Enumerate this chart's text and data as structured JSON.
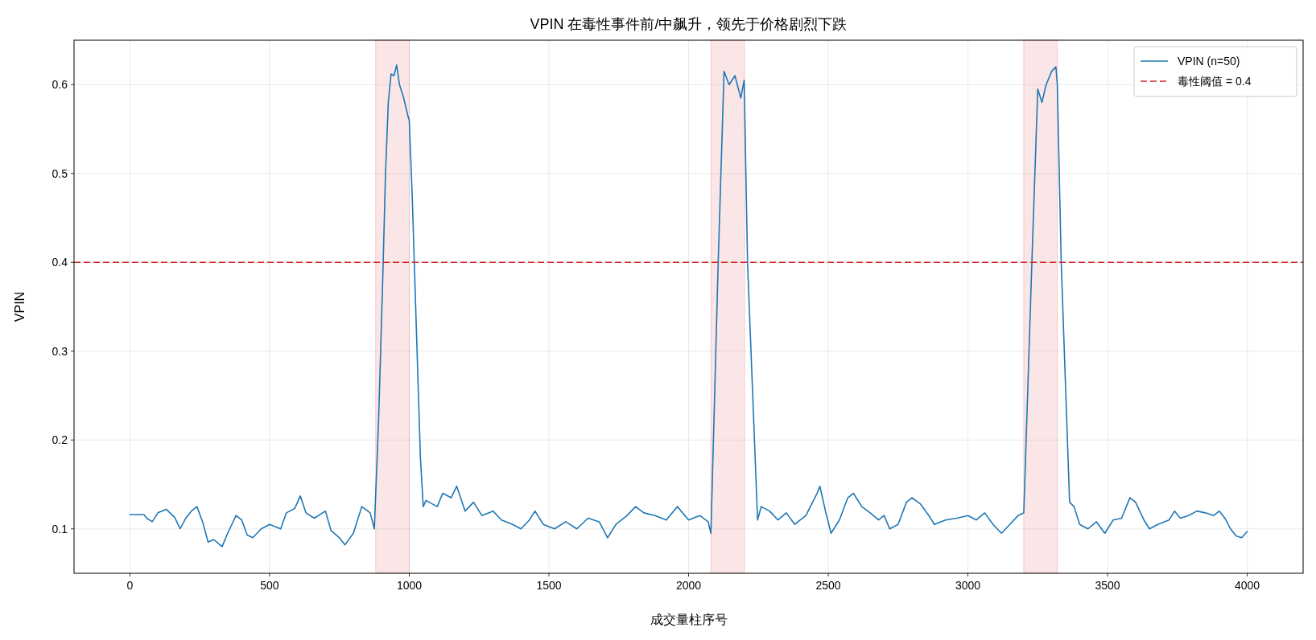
{
  "chart_data": {
    "type": "line",
    "title": "VPIN 在毒性事件前/中飙升，领先于价格剧烈下跌",
    "xlabel": "成交量柱序号",
    "ylabel": "VPIN",
    "x": [
      0,
      50,
      60,
      80,
      100,
      130,
      160,
      180,
      200,
      220,
      240,
      260,
      280,
      300,
      330,
      350,
      380,
      400,
      420,
      440,
      470,
      500,
      540,
      560,
      590,
      610,
      630,
      660,
      700,
      720,
      750,
      770,
      800,
      830,
      860,
      875,
      880,
      890,
      905,
      915,
      925,
      935,
      945,
      955,
      965,
      980,
      995,
      1000,
      1010,
      1025,
      1040,
      1050,
      1060,
      1100,
      1120,
      1150,
      1170,
      1200,
      1230,
      1260,
      1300,
      1330,
      1370,
      1400,
      1430,
      1450,
      1480,
      1520,
      1560,
      1600,
      1640,
      1680,
      1710,
      1740,
      1780,
      1810,
      1840,
      1880,
      1920,
      1960,
      2000,
      2040,
      2070,
      2080,
      2106,
      2127,
      2145,
      2166,
      2187,
      2199,
      2211,
      2247,
      2260,
      2290,
      2320,
      2350,
      2380,
      2420,
      2460,
      2470,
      2490,
      2510,
      2540,
      2570,
      2590,
      2620,
      2650,
      2680,
      2700,
      2720,
      2750,
      2780,
      2800,
      2830,
      2860,
      2880,
      2920,
      2960,
      3000,
      3030,
      3060,
      3090,
      3120,
      3150,
      3180,
      3200,
      3229,
      3250,
      3265,
      3280,
      3300,
      3315,
      3320,
      3334,
      3364,
      3380,
      3400,
      3430,
      3460,
      3490,
      3520,
      3550,
      3580,
      3600,
      3630,
      3650,
      3680,
      3720,
      3740,
      3760,
      3790,
      3820,
      3850,
      3880,
      3900,
      3920,
      3940,
      3960,
      3980,
      4000
    ],
    "series": [
      {
        "name": "VPIN (n=50)",
        "color": "#1f77b4",
        "line_style": "solid",
        "values": [
          0.116,
          0.116,
          0.112,
          0.108,
          0.118,
          0.122,
          0.113,
          0.1,
          0.112,
          0.12,
          0.125,
          0.108,
          0.085,
          0.088,
          0.08,
          0.095,
          0.115,
          0.11,
          0.093,
          0.09,
          0.1,
          0.105,
          0.1,
          0.118,
          0.123,
          0.137,
          0.118,
          0.112,
          0.12,
          0.098,
          0.09,
          0.082,
          0.095,
          0.125,
          0.118,
          0.1,
          0.14,
          0.22,
          0.38,
          0.5,
          0.58,
          0.612,
          0.61,
          0.622,
          0.6,
          0.585,
          0.565,
          0.56,
          0.48,
          0.33,
          0.18,
          0.125,
          0.132,
          0.125,
          0.14,
          0.135,
          0.148,
          0.12,
          0.13,
          0.115,
          0.12,
          0.11,
          0.105,
          0.1,
          0.11,
          0.12,
          0.105,
          0.1,
          0.108,
          0.1,
          0.112,
          0.108,
          0.09,
          0.105,
          0.115,
          0.125,
          0.118,
          0.115,
          0.11,
          0.125,
          0.11,
          0.115,
          0.108,
          0.095,
          0.4,
          0.615,
          0.6,
          0.61,
          0.585,
          0.605,
          0.4,
          0.11,
          0.125,
          0.12,
          0.11,
          0.118,
          0.105,
          0.115,
          0.14,
          0.148,
          0.12,
          0.095,
          0.11,
          0.135,
          0.14,
          0.125,
          0.118,
          0.11,
          0.115,
          0.1,
          0.105,
          0.13,
          0.135,
          0.128,
          0.115,
          0.105,
          0.11,
          0.112,
          0.115,
          0.11,
          0.118,
          0.105,
          0.095,
          0.105,
          0.115,
          0.118,
          0.4,
          0.595,
          0.58,
          0.6,
          0.615,
          0.62,
          0.6,
          0.4,
          0.13,
          0.125,
          0.105,
          0.1,
          0.108,
          0.095,
          0.11,
          0.112,
          0.135,
          0.13,
          0.11,
          0.1,
          0.105,
          0.11,
          0.12,
          0.112,
          0.115,
          0.12,
          0.118,
          0.115,
          0.12,
          0.112,
          0.1,
          0.092,
          0.09,
          0.097
        ]
      }
    ],
    "ref_lines": [
      {
        "axis": "y",
        "value": 0.4,
        "label": "毒性阈值 = 0.4",
        "color": "#d62728",
        "line_style": "dashed"
      }
    ],
    "bands": [
      {
        "axis": "x",
        "from": 880,
        "to": 1000,
        "color": "#f4c7c8"
      },
      {
        "axis": "x",
        "from": 2080,
        "to": 2200,
        "color": "#f4c7c8"
      },
      {
        "axis": "x",
        "from": 3200,
        "to": 3320,
        "color": "#f4c7c8"
      }
    ],
    "xlim": [
      -200,
      4200
    ],
    "ylim": [
      0.05,
      0.65
    ],
    "xticks": [
      0,
      500,
      1000,
      1500,
      2000,
      2500,
      3000,
      3500,
      4000
    ],
    "yticks": [
      0.1,
      0.2,
      0.3,
      0.4,
      0.5,
      0.6
    ],
    "grid": true,
    "legend": "top right"
  }
}
